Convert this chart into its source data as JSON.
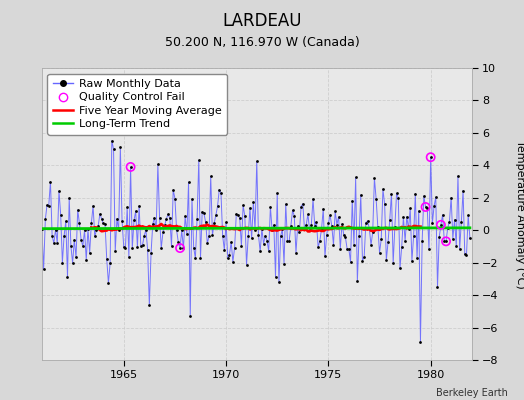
{
  "title": "LARDEAU",
  "subtitle": "50.200 N, 116.970 W (Canada)",
  "ylabel": "Temperature Anomaly (°C)",
  "credit": "Berkeley Earth",
  "bg_color": "#d8d8d8",
  "plot_bg_color": "#e8e8e8",
  "ylim": [
    -8,
    10
  ],
  "yticks": [
    -8,
    -6,
    -4,
    -2,
    0,
    2,
    4,
    6,
    8,
    10
  ],
  "start_year": 1961.0,
  "end_year": 1982.0,
  "xticks": [
    1965,
    1970,
    1975,
    1980
  ],
  "raw_line_color": "#6666ff",
  "raw_marker_color": "#000000",
  "moving_avg_color": "#ff0000",
  "trend_color": "#00cc00",
  "qc_fail_color": "#ff00ff",
  "legend_fontsize": 8,
  "title_fontsize": 12,
  "subtitle_fontsize": 9,
  "axis_fontsize": 8,
  "credit_fontsize": 7
}
